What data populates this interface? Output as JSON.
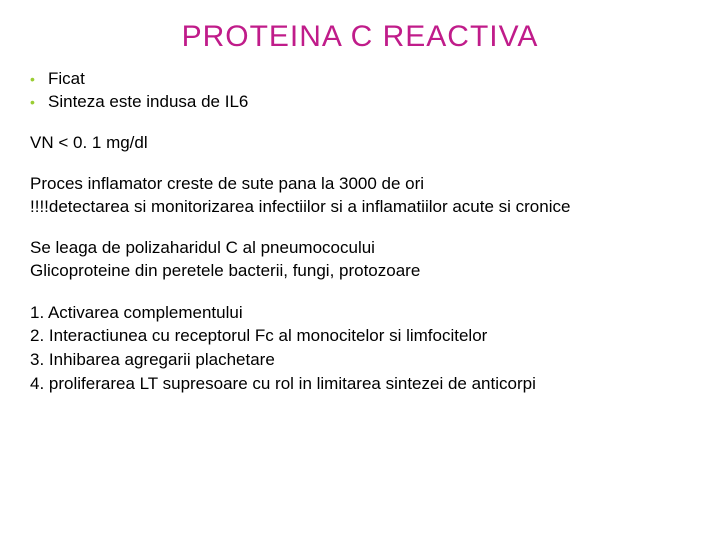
{
  "colors": {
    "title": "#c01c8a",
    "bullet": "#9acd32",
    "body": "#000000",
    "background": "#ffffff"
  },
  "typography": {
    "title_fontsize": 30,
    "body_fontsize": 17,
    "title_family": "Century Gothic",
    "body_family": "Trebuchet MS"
  },
  "title": "PROTEINA C REACTIVA",
  "bullets": [
    "Ficat",
    "Sinteza este indusa de IL6"
  ],
  "line_vn": "VN < 0. 1 mg/dl",
  "para_inflam_1": "Proces inflamator creste de sute pana la 3000 de ori",
  "para_inflam_2": "!!!!detectarea si monitorizarea infectiilor si a inflamatiilor acute si cronice",
  "para_bind_1": "Se leaga de polizaharidul C al pneumococului",
  "para_bind_2": "Glicoproteine din peretele bacterii, fungi, protozoare",
  "numbered": [
    "Activarea complementului",
    "Interactiunea cu receptorul Fc al monocitelor si limfocitelor",
    "Inhibarea agregarii plachetare",
    "proliferarea LT supresoare cu rol in limitarea sintezei de anticorpi"
  ]
}
